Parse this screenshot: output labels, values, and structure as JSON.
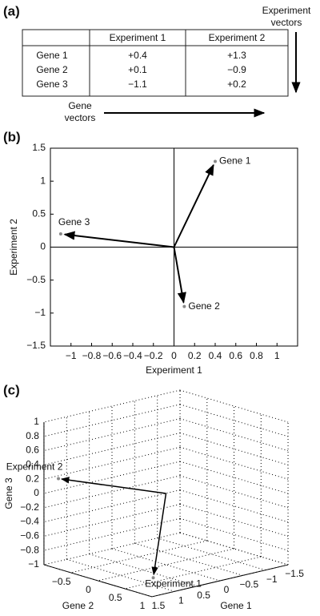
{
  "panel_labels": [
    "(a)",
    "(b)",
    "(c)"
  ],
  "table": {
    "header": [
      "Experiment 1",
      "Experiment 2"
    ],
    "rows": [
      {
        "label": "Gene 1",
        "cells": [
          "+0.4",
          "+1.3"
        ]
      },
      {
        "label": "Gene 2",
        "cells": [
          "+0.1",
          "−0.9"
        ]
      },
      {
        "label": "Gene 3",
        "cells": [
          "−1.1",
          "+0.2"
        ]
      }
    ]
  },
  "annotations": {
    "experiment_vectors": [
      "Experiment",
      "vectors"
    ],
    "gene_vectors": [
      "Gene",
      "vectors"
    ]
  },
  "chart_data": [
    {
      "type": "scatter",
      "x_label": "Experiment 1",
      "y_label": "Experiment 2",
      "x": [
        0.4,
        0.1,
        -1.1
      ],
      "values": [
        1.3,
        -0.9,
        0.2
      ],
      "point_labels": [
        "Gene 1",
        "Gene 2",
        "Gene 3"
      ],
      "color": "#888888",
      "arrow_color": "#000000",
      "xlim": [
        -1.2,
        1.2
      ],
      "ylim": [
        -1.5,
        1.5
      ],
      "xticks": [
        {
          "value": -1,
          "label": "−1"
        },
        {
          "value": -0.8,
          "label": "−0.8"
        },
        {
          "value": -0.6,
          "label": "−0.6"
        },
        {
          "value": -0.4,
          "label": "−0.4"
        },
        {
          "value": -0.2,
          "label": "−0.2"
        },
        0,
        0.2,
        0.4,
        0.6,
        0.8,
        1
      ],
      "yticks": [
        {
          "value": -1.5,
          "label": "−1.5"
        },
        {
          "value": -1,
          "label": "−1"
        },
        {
          "value": -0.5,
          "label": "−0.5"
        },
        0,
        0.5,
        1,
        1.5
      ]
    },
    {
      "type": "scatter3d",
      "x_label": "Gene 1",
      "y_label": "Gene 2",
      "z_label": "Gene 3",
      "x": [
        0.4,
        1.3
      ],
      "y": [
        0.1,
        -0.9
      ],
      "z": [
        -1.1,
        0.2
      ],
      "point_labels": [
        "Experiment 1",
        "Experiment 2"
      ],
      "color": "#888888",
      "arrow_color": "#000000",
      "grid": true,
      "xlim": [
        -1.5,
        1.5
      ],
      "ylim": [
        -1,
        1
      ],
      "zlim": [
        -1,
        1
      ],
      "xticks": [
        {
          "value": -1.5,
          "label": "−1.5"
        },
        {
          "value": -1,
          "label": "−1"
        },
        {
          "value": -0.5,
          "label": "−0.5"
        },
        0,
        0.5,
        1,
        1.5
      ],
      "yticks": [
        {
          "value": -0.5,
          "label": "−0.5"
        },
        0,
        0.5,
        1
      ],
      "zticks": [
        {
          "value": -1,
          "label": "−1"
        },
        {
          "value": -0.8,
          "label": "−0.8"
        },
        {
          "value": -0.6,
          "label": "−0.6"
        },
        {
          "value": -0.4,
          "label": "−0.4"
        },
        {
          "value": -0.2,
          "label": "−0.2"
        },
        0,
        0.2,
        0.4,
        0.6,
        0.8,
        1
      ]
    }
  ]
}
